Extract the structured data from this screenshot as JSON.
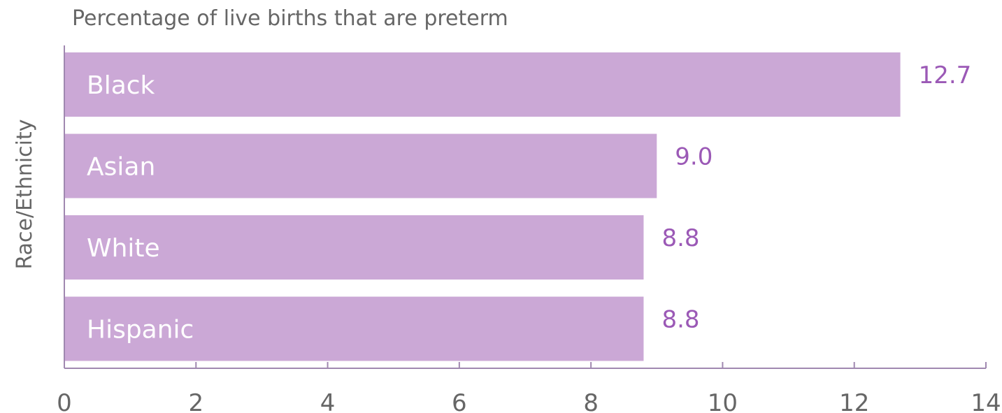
{
  "chart_data": {
    "type": "bar",
    "orientation": "horizontal",
    "title": "Percentage of live births that are preterm",
    "ylabel": "Race/Ethnicity",
    "xlabel": "",
    "categories": [
      "Black",
      "Asian",
      "White",
      "Hispanic"
    ],
    "values": [
      12.7,
      9.0,
      8.8,
      8.8
    ],
    "value_labels": [
      "12.7",
      "9.0",
      "8.8",
      "8.8"
    ],
    "xlim": [
      0,
      14
    ],
    "xticks": [
      "0",
      "2",
      "4",
      "6",
      "8",
      "10",
      "12",
      "14"
    ],
    "grid": false,
    "legend": "none",
    "colors": {
      "bar": "#cba8d6",
      "bar_label": "#ffffff",
      "value_label": "#9b59b6",
      "axis": "#a088b0",
      "text": "#666666"
    }
  }
}
